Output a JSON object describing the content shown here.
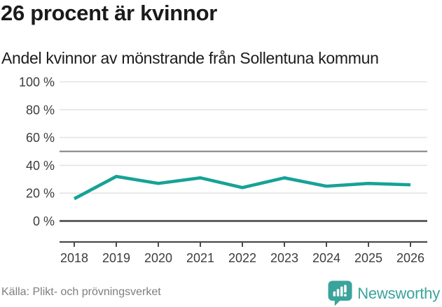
{
  "title": "26 procent är kvinnor",
  "subtitle": "Andel kvinnor av mönstrande från Sollentuna kommun",
  "source": "Källa: Plikt- och prövningsverket",
  "brand": {
    "name": "Newsworthy",
    "color": "#3aa39b",
    "icon": "speech-bubble-bar-chart"
  },
  "colors": {
    "line": "#17a296",
    "grid": "#e4e4e4",
    "grid_strong": "#7c7c7c",
    "zero_line": "#3f3f3f",
    "axis": "#4a4a4a",
    "label": "#3d3d3d"
  },
  "chart_data": {
    "type": "line",
    "title": "26 procent är kvinnor",
    "subtitle": "Andel kvinnor av mönstrande från Sollentuna kommun",
    "x": [
      2018,
      2019,
      2020,
      2021,
      2022,
      2023,
      2024,
      2025,
      2026
    ],
    "series": [
      {
        "name": "Andel kvinnor av mönstrande",
        "values": [
          16,
          32,
          27,
          31,
          24,
          31,
          25,
          27,
          26
        ]
      }
    ],
    "unit": "%",
    "ylim": [
      0,
      100
    ],
    "yticks": [
      0,
      20,
      40,
      60,
      80,
      100
    ],
    "ytick_suffix": " %",
    "reference_line": 50,
    "grid": true,
    "legend": "none",
    "xlabel": "",
    "ylabel": ""
  }
}
